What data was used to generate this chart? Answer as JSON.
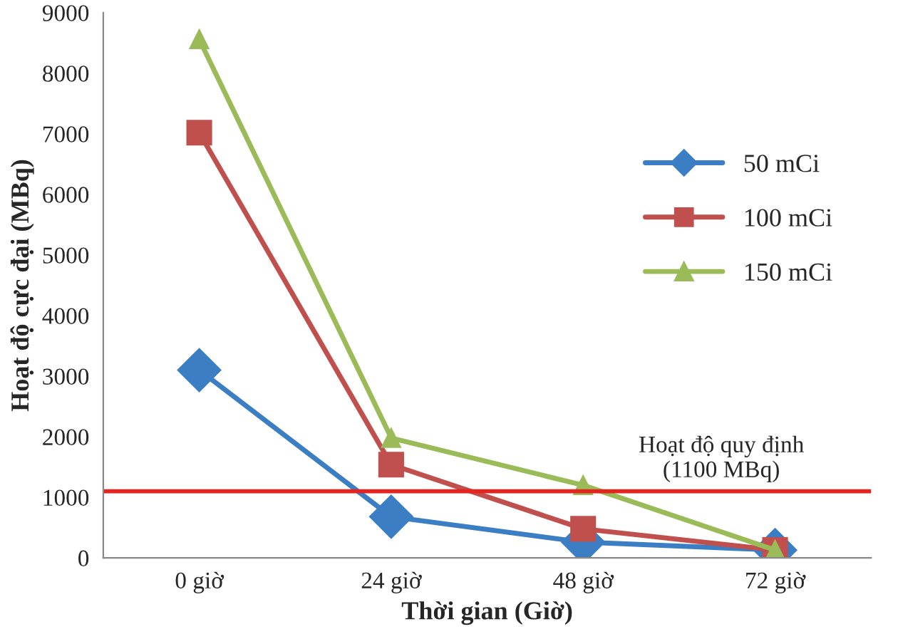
{
  "chart_data": {
    "type": "line",
    "xlabel": "Thời gian (Giờ)",
    "ylabel": "Hoạt độ cực đại (MBq)",
    "categories": [
      "0 giờ",
      "24 giờ",
      "48 giờ",
      "72 giờ"
    ],
    "series": [
      {
        "name": "50 mCi",
        "color": "#3b7ec4",
        "marker": "diamond",
        "values": [
          3100,
          680,
          260,
          130
        ]
      },
      {
        "name": "100 mCi",
        "color": "#c0504d",
        "marker": "square",
        "values": [
          7020,
          1540,
          480,
          130
        ]
      },
      {
        "name": "150 mCi",
        "color": "#9bbb59",
        "marker": "triangle",
        "values": [
          8560,
          1980,
          1200,
          130
        ]
      }
    ],
    "ylim": [
      0,
      9000
    ],
    "yticks": [
      0,
      1000,
      2000,
      3000,
      4000,
      5000,
      6000,
      7000,
      8000,
      9000
    ],
    "ref_lines": [
      {
        "axis": "y",
        "value": 1100,
        "label": "Hoạt độ quy định\n(1100 MBq)",
        "color": "#e3241f"
      }
    ],
    "grid": false,
    "legend": "right",
    "line_style": "solid"
  }
}
